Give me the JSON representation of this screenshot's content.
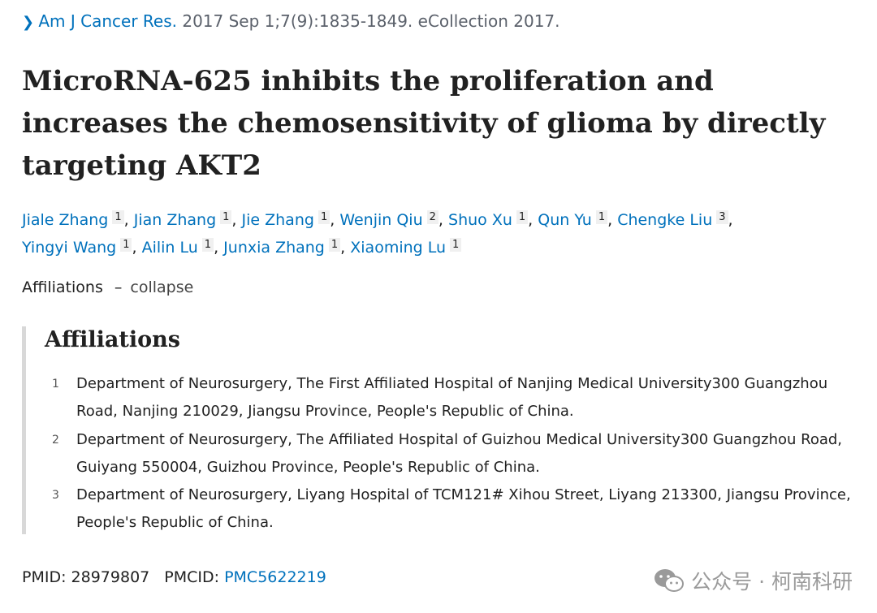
{
  "citation": {
    "journal": "Am J Cancer Res.",
    "details": " 2017 Sep 1;7(9):1835-1849. eCollection 2017."
  },
  "title": "MicroRNA-625 inhibits the proliferation and increases the chemosensitivity of glioma by directly targeting AKT2",
  "authors": [
    {
      "name": "Jiale Zhang",
      "aff": "1"
    },
    {
      "name": "Jian Zhang",
      "aff": "1"
    },
    {
      "name": "Jie Zhang",
      "aff": "1"
    },
    {
      "name": "Wenjin Qiu",
      "aff": "2"
    },
    {
      "name": "Shuo Xu",
      "aff": "1"
    },
    {
      "name": "Qun Yu",
      "aff": "1"
    },
    {
      "name": "Chengke Liu",
      "aff": "3"
    },
    {
      "name": "Yingyi Wang",
      "aff": "1"
    },
    {
      "name": "Ailin Lu",
      "aff": "1"
    },
    {
      "name": "Junxia Zhang",
      "aff": "1"
    },
    {
      "name": "Xiaoming Lu",
      "aff": "1"
    }
  ],
  "affiliations_toggle": {
    "label": "Affiliations",
    "dash": "–",
    "action": "collapse"
  },
  "affiliations": {
    "heading": "Affiliations",
    "items": [
      {
        "num": "1",
        "text": "Department of Neurosurgery, The First Affiliated Hospital of Nanjing Medical University300 Guangzhou Road, Nanjing 210029, Jiangsu Province, People's Republic of China."
      },
      {
        "num": "2",
        "text": "Department of Neurosurgery, The Affiliated Hospital of Guizhou Medical University300 Guangzhou Road, Guiyang 550004, Guizhou Province, People's Republic of China."
      },
      {
        "num": "3",
        "text": "Department of Neurosurgery, Liyang Hospital of TCM121# Xihou Street, Liyang 213300, Jiangsu Province, People's Republic of China."
      }
    ]
  },
  "ids": {
    "pmid_label": "PMID:",
    "pmid": "28979807",
    "pmcid_label": "PMCID:",
    "pmcid": "PMC5622219"
  },
  "watermark": {
    "text": "公众号 · 柯南科研",
    "icon": "wechat-icon"
  },
  "colors": {
    "link": "#0071bc",
    "text": "#212121",
    "muted": "#5b616b",
    "border": "#d8d8d8"
  }
}
